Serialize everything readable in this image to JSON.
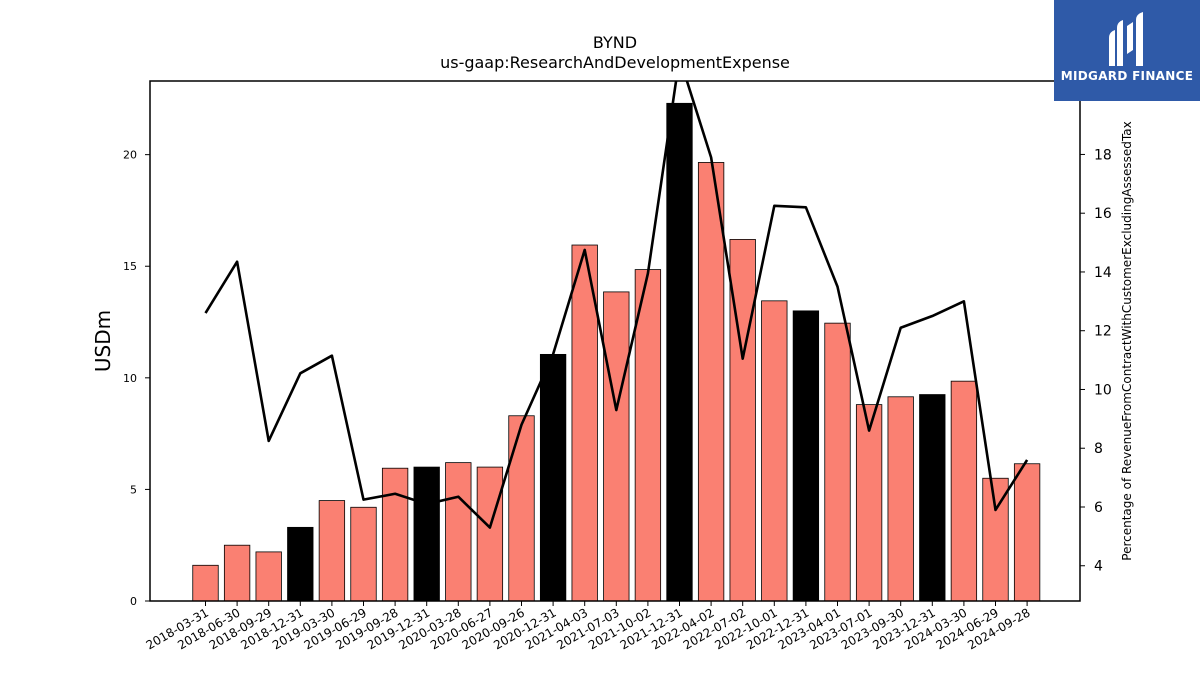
{
  "chart_data": {
    "type": "bar",
    "title": "BYND",
    "subtitle": "us-gaap:ResearchAndDevelopmentExpense",
    "ylabel": "USDm",
    "y2label": "Percentage of RevenueFromContractWithCustomerExcludingAssessedTax",
    "ylim": [
      0,
      23.3
    ],
    "y2lim": [
      2.8,
      20.5
    ],
    "yticks": [
      0,
      5,
      10,
      15,
      20
    ],
    "y2ticks": [
      4,
      6,
      8,
      10,
      12,
      14,
      16,
      18,
      20
    ],
    "categories": [
      "2018-03-31",
      "2018-06-30",
      "2018-09-29",
      "2018-12-31",
      "2019-03-30",
      "2019-06-29",
      "2019-09-28",
      "2019-12-31",
      "2020-03-28",
      "2020-06-27",
      "2020-09-26",
      "2020-12-31",
      "2021-04-03",
      "2021-07-03",
      "2021-10-02",
      "2021-12-31",
      "2022-04-02",
      "2022-07-02",
      "2022-10-01",
      "2022-12-31",
      "2023-04-01",
      "2023-07-01",
      "2023-09-30",
      "2023-12-31",
      "2024-03-30",
      "2024-06-29",
      "2024-09-28"
    ],
    "series": [
      {
        "type": "bar",
        "values": [
          1.6,
          2.5,
          2.2,
          3.3,
          4.5,
          4.2,
          5.95,
          6.0,
          6.2,
          6.0,
          8.3,
          11.05,
          15.95,
          13.85,
          14.85,
          22.3,
          19.65,
          16.2,
          13.45,
          13.0,
          12.45,
          8.8,
          9.15,
          9.25,
          9.85,
          5.5,
          6.15
        ],
        "colors": [
          "#fa8072",
          "#fa8072",
          "#fa8072",
          "#000000",
          "#fa8072",
          "#fa8072",
          "#fa8072",
          "#000000",
          "#fa8072",
          "#fa8072",
          "#fa8072",
          "#000000",
          "#fa8072",
          "#fa8072",
          "#fa8072",
          "#000000",
          "#fa8072",
          "#fa8072",
          "#fa8072",
          "#000000",
          "#fa8072",
          "#fa8072",
          "#fa8072",
          "#000000",
          "#fa8072",
          "#fa8072",
          "#fa8072"
        ]
      },
      {
        "type": "line",
        "axis": "right",
        "color": "#000000",
        "values": [
          12.6,
          14.35,
          8.25,
          10.55,
          11.15,
          6.25,
          6.45,
          6.1,
          6.35,
          5.3,
          8.8,
          11.2,
          14.75,
          9.3,
          13.95,
          21.3,
          17.9,
          11.05,
          16.25,
          16.2,
          13.5,
          8.6,
          12.1,
          12.5,
          13.0,
          5.9,
          7.6
        ]
      }
    ],
    "grid": false,
    "legend": "none"
  },
  "logo": {
    "text": "MIDGARD FINANCE"
  }
}
